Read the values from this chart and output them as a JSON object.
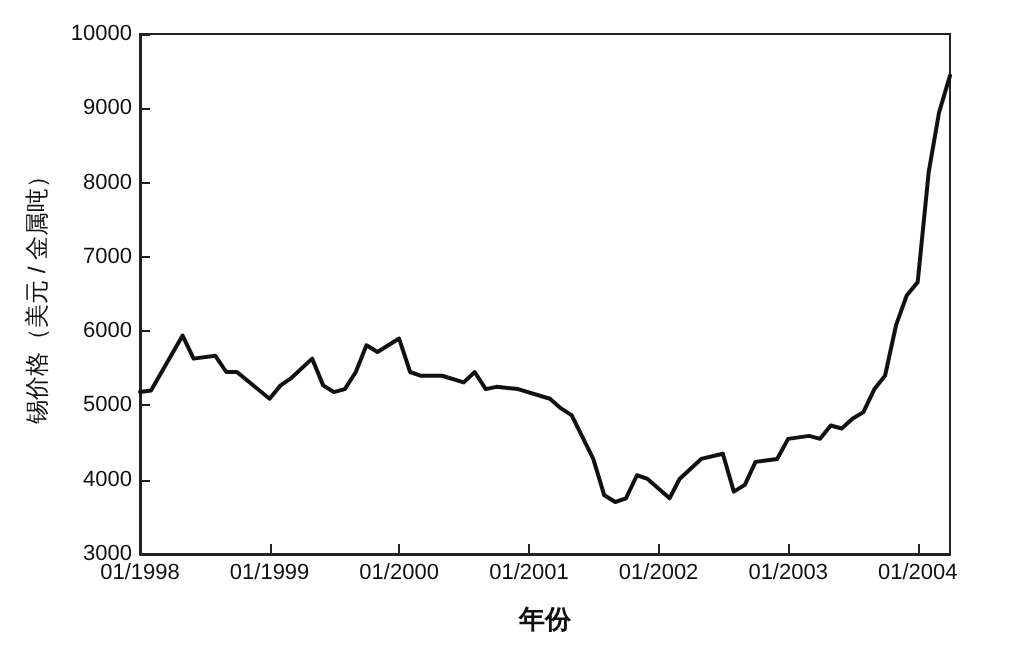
{
  "chart_data": {
    "type": "line",
    "xlabel": "年份",
    "ylabel": "锡价格（美元 / 金属吨）",
    "x": [
      "1998-01",
      "1998-02",
      "1998-05",
      "1998-06",
      "1998-08",
      "1998-09",
      "1998-10",
      "1999-01",
      "1999-02",
      "1999-03",
      "1999-05",
      "1999-06",
      "1999-07",
      "1999-08",
      "1999-09",
      "1999-10",
      "1999-11",
      "2000-01",
      "2000-02",
      "2000-03",
      "2000-05",
      "2000-07",
      "2000-08",
      "2000-09",
      "2000-10",
      "2000-12",
      "2001-03",
      "2001-04",
      "2001-05",
      "2001-07",
      "2001-08",
      "2001-09",
      "2001-10",
      "2001-11",
      "2001-12",
      "2002-02",
      "2002-03",
      "2002-05",
      "2002-07",
      "2002-08",
      "2002-09",
      "2002-10",
      "2002-12",
      "2003-01",
      "2003-03",
      "2003-04",
      "2003-05",
      "2003-06",
      "2003-07",
      "2003-08",
      "2003-09",
      "2003-10",
      "2003-11",
      "2003-12",
      "2004-01",
      "2004-02",
      "2004-03",
      "2004-04"
    ],
    "series": [
      {
        "color": "#111111",
        "values": [
          5180,
          5200,
          5940,
          5630,
          5670,
          5450,
          5450,
          5090,
          5270,
          5360,
          5630,
          5270,
          5180,
          5220,
          5450,
          5810,
          5720,
          5900,
          5450,
          5400,
          5400,
          5310,
          5450,
          5220,
          5250,
          5220,
          5090,
          4960,
          4870,
          4280,
          3790,
          3700,
          3750,
          4060,
          4010,
          3750,
          4010,
          4280,
          4350,
          3840,
          3930,
          4240,
          4280,
          4550,
          4590,
          4550,
          4730,
          4690,
          4820,
          4910,
          5220,
          5400,
          6080,
          6480,
          6660,
          8140,
          8940,
          9440
        ]
      }
    ],
    "xlim": [
      "1998-01",
      "2004-04"
    ],
    "xticks": [
      {
        "value": "1998-01",
        "label": "01/1998"
      },
      {
        "value": "1999-01",
        "label": "01/1999"
      },
      {
        "value": "2000-01",
        "label": "01/2000"
      },
      {
        "value": "2001-01",
        "label": "01/2001"
      },
      {
        "value": "2002-01",
        "label": "01/2002"
      },
      {
        "value": "2003-01",
        "label": "01/2003"
      },
      {
        "value": "2004-01",
        "label": "01/2004"
      }
    ],
    "ylim": [
      3000,
      10000
    ],
    "yticks": [
      3000,
      4000,
      5000,
      6000,
      7000,
      8000,
      9000,
      10000
    ],
    "grid": false,
    "marker": "none",
    "line_style": "solid"
  }
}
